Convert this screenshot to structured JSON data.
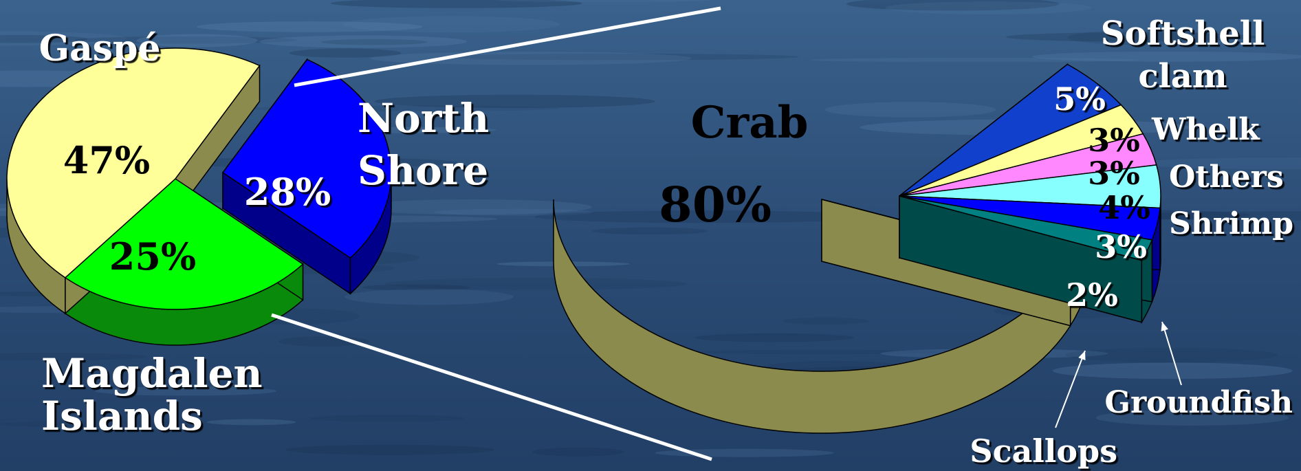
{
  "chart_data": [
    {
      "type": "pie",
      "style": "3d-exploded",
      "slices": [
        {
          "label": "Gaspé",
          "value": 47,
          "value_label": "47%",
          "color": "#ffff99",
          "side_color": "#8b8b4e"
        },
        {
          "label": "Magdalen\nIslands",
          "value": 25,
          "value_label": "25%",
          "color": "#00ff00",
          "side_color": "#0a8a0a"
        },
        {
          "label": "North\nShore",
          "value": 28,
          "value_label": "28%",
          "color": "#0000ff",
          "side_color": "#00008b"
        }
      ]
    },
    {
      "type": "pie",
      "style": "3d-exploded",
      "slices": [
        {
          "label": "Crab",
          "value": 80,
          "value_label": "80%",
          "color": "#ffff88",
          "side_color": "#8b8b4e"
        },
        {
          "label": "Softshell\nclam",
          "value": 5,
          "value_label": "5%",
          "color": "#1040cc",
          "side_color": "#0a2a7a"
        },
        {
          "label": "Whelk",
          "value": 3,
          "value_label": "3%",
          "color": "#ffff99",
          "side_color": "#8b8b4e"
        },
        {
          "label": "Others",
          "value": 3,
          "value_label": "3%",
          "color": "#ff88ff",
          "side_color": "#8b4e8b"
        },
        {
          "label": "Shrimp",
          "value": 4,
          "value_label": "4%",
          "color": "#88ffff",
          "side_color": "#2e8b8b"
        },
        {
          "label": "Groundfish",
          "value": 3,
          "value_label": "3%",
          "color": "#0000ff",
          "side_color": "#00008b"
        },
        {
          "label": "Scallops",
          "value": 2,
          "value_label": "2%",
          "color": "#008080",
          "side_color": "#004a4a"
        }
      ]
    }
  ],
  "colors": {
    "background": "#2d4f7a",
    "label_white": "#ffffff",
    "label_black": "#000000",
    "outline": "#000000"
  }
}
